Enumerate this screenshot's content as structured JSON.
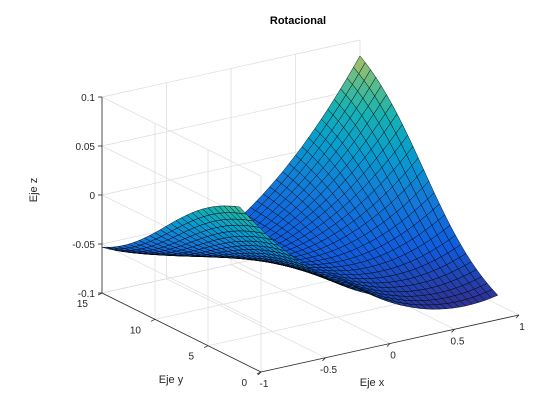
{
  "chart_data": {
    "type": "surface",
    "title": "Rotacional",
    "xlabel": "Eje x",
    "ylabel": "Eje y",
    "zlabel": "Eje z",
    "xlim": [
      -1,
      1
    ],
    "ylim": [
      0,
      15
    ],
    "zlim": [
      -0.1,
      0.1
    ],
    "x_ticks": [
      -1,
      -0.5,
      0,
      0.5,
      1
    ],
    "y_ticks": [
      0,
      5,
      10,
      15
    ],
    "z_ticks": [
      -0.1,
      -0.05,
      0,
      0.05,
      0.1
    ],
    "x_tick_labels": [
      "-1",
      "-0.5",
      "0",
      "0.5",
      "1"
    ],
    "y_tick_labels": [
      "0",
      "5",
      "10",
      "15"
    ],
    "z_tick_labels": [
      "-0.1",
      "-0.05",
      "0",
      "0.05",
      "0.1"
    ],
    "grid": true,
    "colormap": "parula",
    "surface": {
      "x_range": [
        -1,
        1
      ],
      "y_range": [
        2,
        15
      ],
      "z_min": -0.1,
      "z_max": 0.1,
      "z_ridge_at_x0": -0.06,
      "ridge_x": 0,
      "ridge_y": 9
    }
  }
}
